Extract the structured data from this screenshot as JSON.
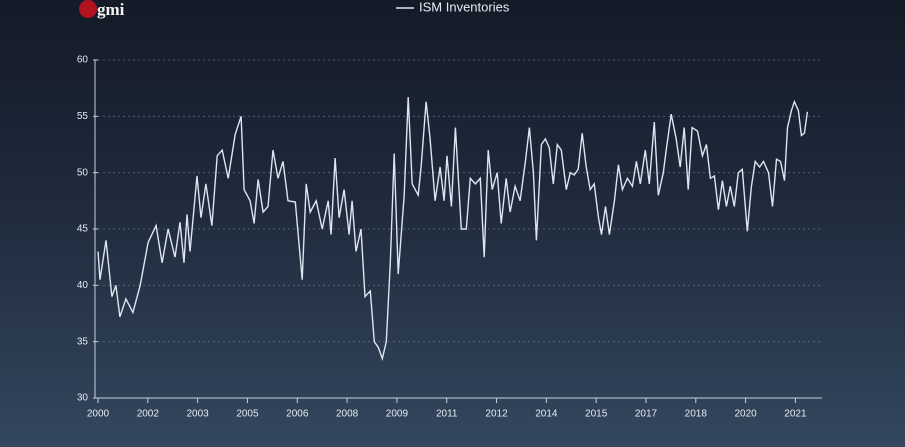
{
  "logo": "gmi",
  "chart_data": {
    "type": "line",
    "x": [
      2000.0,
      2000.06,
      2000.24,
      2000.42,
      2000.54,
      2000.66,
      2000.84,
      2001.05,
      2001.27,
      2001.51,
      2001.75,
      2001.93,
      2002.11,
      2002.32,
      2002.47,
      2002.59,
      2002.68,
      2002.77,
      2002.98,
      2003.1,
      2003.25,
      2003.43,
      2003.59,
      2003.74,
      2003.92,
      2004.13,
      2004.31,
      2004.4,
      2004.58,
      2004.7,
      2004.82,
      2004.97,
      2005.12,
      2005.27,
      2005.42,
      2005.57,
      2005.72,
      2005.94,
      2006.15,
      2006.27,
      2006.39,
      2006.57,
      2006.75,
      2006.93,
      2007.02,
      2007.14,
      2007.26,
      2007.41,
      2007.56,
      2007.65,
      2007.77,
      2007.92,
      2008.04,
      2008.2,
      2008.32,
      2008.44,
      2008.56,
      2008.68,
      2008.8,
      2008.92,
      2009.04,
      2009.22,
      2009.34,
      2009.46,
      2009.64,
      2009.73,
      2009.88,
      2010.0,
      2010.15,
      2010.3,
      2010.42,
      2010.51,
      2010.64,
      2010.76,
      2010.94,
      2011.09,
      2011.21,
      2011.36,
      2011.51,
      2011.63,
      2011.75,
      2011.87,
      2012.02,
      2012.14,
      2012.29,
      2012.41,
      2012.56,
      2012.71,
      2012.87,
      2012.99,
      2013.11,
      2013.2,
      2013.35,
      2013.47,
      2013.59,
      2013.71,
      2013.83,
      2013.95,
      2014.1,
      2014.22,
      2014.34,
      2014.46,
      2014.58,
      2014.7,
      2014.82,
      2014.94,
      2015.07,
      2015.16,
      2015.28,
      2015.4,
      2015.55,
      2015.67,
      2015.79,
      2015.94,
      2016.09,
      2016.21,
      2016.33,
      2016.48,
      2016.6,
      2016.75,
      2016.87,
      2017.02,
      2017.11,
      2017.26,
      2017.41,
      2017.53,
      2017.65,
      2017.77,
      2017.89,
      2018.05,
      2018.2,
      2018.32,
      2018.44,
      2018.56,
      2018.68,
      2018.8,
      2018.92,
      2019.04,
      2019.16,
      2019.28,
      2019.4,
      2019.55,
      2019.67,
      2019.79,
      2019.92,
      2020.04,
      2020.19,
      2020.31,
      2020.43,
      2020.55,
      2020.67,
      2020.76,
      2020.88,
      2020.97,
      2021.09,
      2021.18,
      2021.27,
      2021.36
    ],
    "series": [
      {
        "name": "ISM Inventories",
        "color": "#dde6f0",
        "values": [
          43,
          40.5,
          44,
          39,
          40,
          37.2,
          38.8,
          37.6,
          40,
          43.8,
          45.3,
          42,
          45,
          42.5,
          45.6,
          42,
          46.3,
          43,
          49.7,
          46,
          49,
          45.3,
          51.5,
          52,
          49.5,
          53.4,
          55,
          48.5,
          47.5,
          45.5,
          49.4,
          46.5,
          47,
          52,
          49.5,
          51,
          47.5,
          47.4,
          40.5,
          49,
          46.5,
          47.5,
          45,
          47.5,
          44.5,
          51.3,
          46,
          48.5,
          44.5,
          47.5,
          43,
          45,
          39,
          39.5,
          35,
          34.5,
          33.5,
          35,
          42,
          51.7,
          41,
          48,
          56.7,
          49,
          48,
          50.5,
          56.3,
          53,
          47.5,
          50.5,
          47.5,
          51.5,
          47,
          54,
          45,
          45,
          49.5,
          49,
          49.5,
          42.5,
          52,
          48.5,
          50,
          45.5,
          49.5,
          46.5,
          48.8,
          47.5,
          51,
          54,
          50,
          44,
          52.5,
          53,
          52.2,
          49,
          52.5,
          52,
          48.5,
          50,
          49.8,
          50.3,
          53.5,
          50.5,
          48.5,
          49,
          46,
          44.5,
          47,
          44.5,
          47.5,
          50.7,
          48.5,
          49.5,
          48.8,
          51,
          49,
          52,
          49,
          54.5,
          48,
          50,
          52,
          55.2,
          53,
          50.5,
          54,
          48.5,
          54,
          53.7,
          51.5,
          52.5,
          49.5,
          49.7,
          46.7,
          49.3,
          47,
          48.8,
          47,
          50,
          50.3,
          44.8,
          48.7,
          51,
          50.5,
          51,
          50,
          47,
          51.2,
          51,
          49.3,
          54,
          55.5,
          56.3,
          55.5,
          53.3,
          53.5,
          55.4
        ]
      }
    ],
    "xlim": [
      2000,
      2021.8
    ],
    "xticks": [
      {
        "value": 2000,
        "label": "2000"
      },
      {
        "value": 2001.5,
        "label": "2002"
      },
      {
        "value": 2003,
        "label": "2003"
      },
      {
        "value": 2004.5,
        "label": "2005"
      },
      {
        "value": 2006,
        "label": "2006"
      },
      {
        "value": 2007.5,
        "label": "2008"
      },
      {
        "value": 2009,
        "label": "2009"
      },
      {
        "value": 2010.5,
        "label": "2011"
      },
      {
        "value": 2012,
        "label": "2012"
      },
      {
        "value": 2013.5,
        "label": "2014"
      },
      {
        "value": 2015,
        "label": "2015"
      },
      {
        "value": 2016.5,
        "label": "2017"
      },
      {
        "value": 2018,
        "label": "2018"
      },
      {
        "value": 2019.5,
        "label": "2020"
      },
      {
        "value": 2021,
        "label": "2021"
      }
    ],
    "ylim": [
      30,
      60
    ],
    "yticks": [
      30,
      35,
      40,
      45,
      50,
      55,
      60
    ],
    "grid": true
  }
}
